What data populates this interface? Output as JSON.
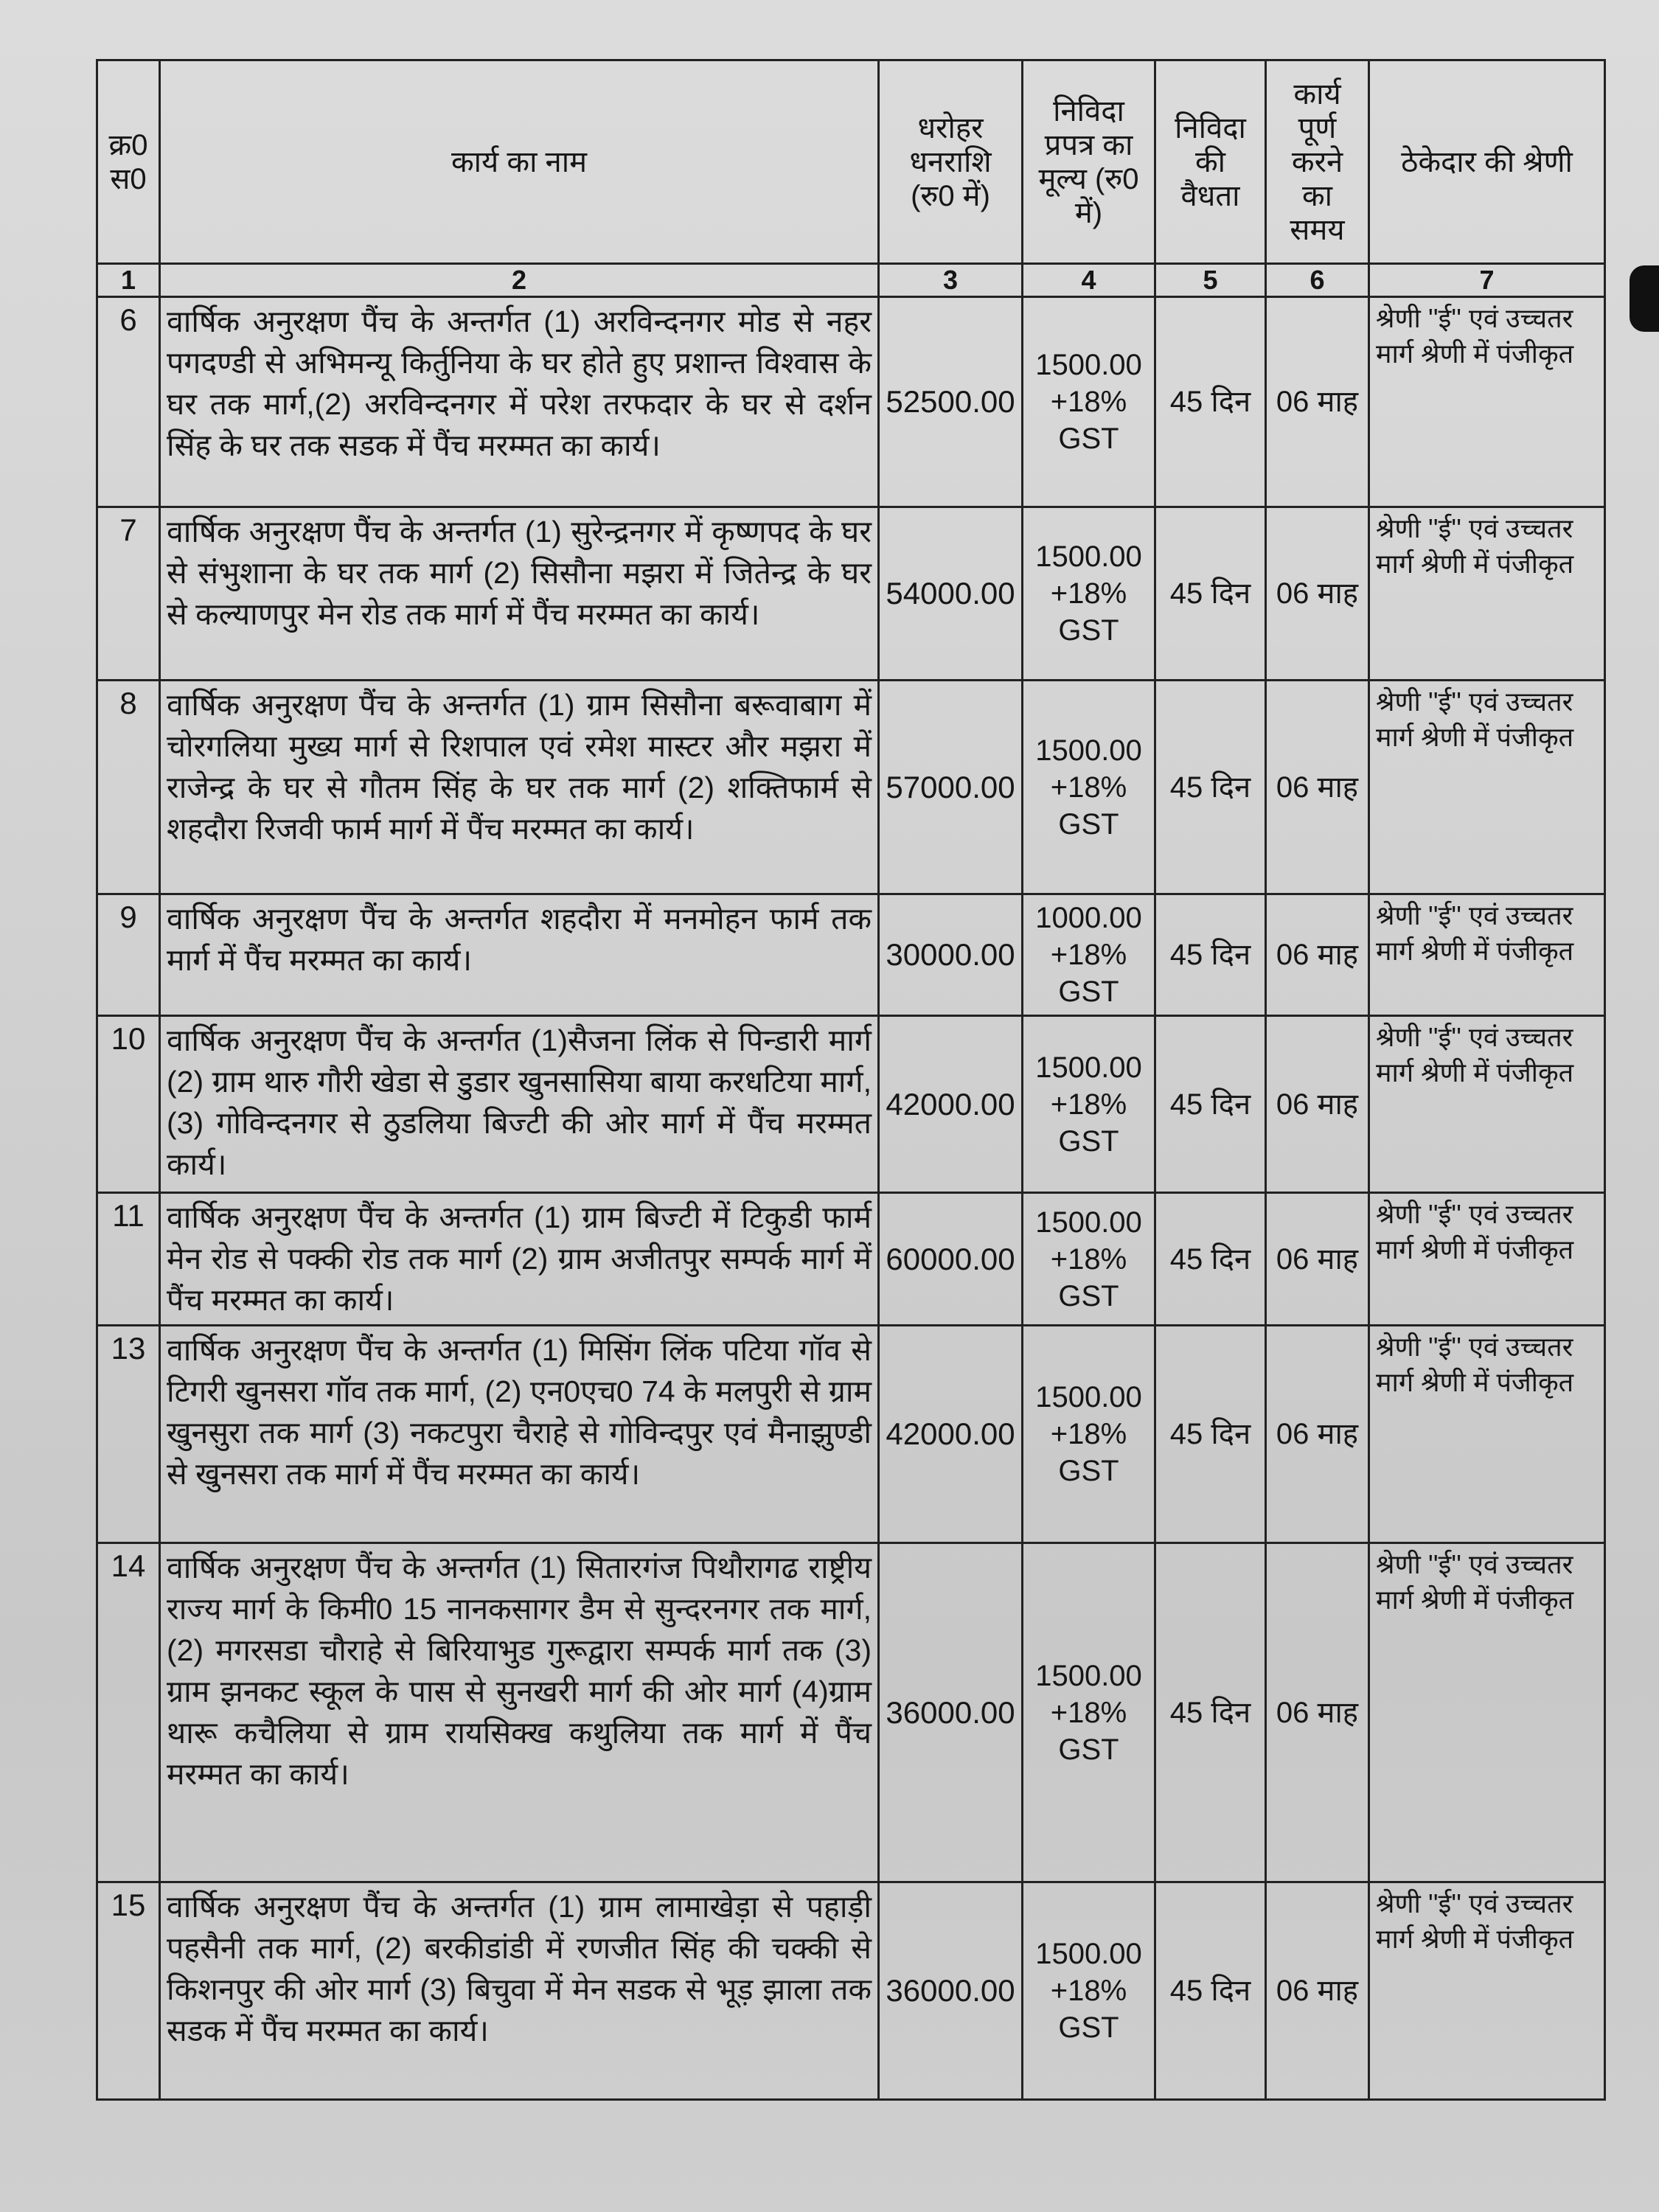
{
  "table": {
    "headers": [
      "क्र0 स0",
      "कार्य का नाम",
      "धरोहर धनराशि (रु0 में)",
      "निविदा प्रपत्र का मूल्य (रु0 में)",
      "निविदा की वैधता",
      "कार्य पूर्ण करने का समय",
      "ठेकेदार की श्रेणी"
    ],
    "column_numbers": [
      "1",
      "2",
      "3",
      "4",
      "5",
      "6",
      "7"
    ],
    "rows": [
      {
        "sn": "6",
        "name": "वार्षिक अनुरक्षण पैंच के अन्तर्गत (1) अरविन्दनगर मोड से नहर पगदण्डी से अभिमन्यू किर्तुनिया के घर होते हुए प्रशान्त विश्वास के घर तक मार्ग,(2) अरविन्दनगर में परेश तरफदार के घर से दर्शन सिंह के घर तक सडक में पैंच मरम्मत का कार्य।",
        "amount": "52500.00",
        "fee": "1500.00 +18% GST",
        "validity": "45 दिन",
        "time": "06 माह",
        "category": "श्रेणी ''ई'' एवं उच्चतर मार्ग श्रेणी में पंजीकृत"
      },
      {
        "sn": "7",
        "name": "वार्षिक अनुरक्षण पैंच के अन्तर्गत (1) सुरेन्द्रनगर में कृष्णपद के घर से संभुशाना के घर तक मार्ग (2) सिसौना मझरा में जितेन्द्र के घर से कल्याणपुर मेन रोड तक मार्ग में पैंच मरम्मत का कार्य।",
        "amount": "54000.00",
        "fee": "1500.00 +18% GST",
        "validity": "45 दिन",
        "time": "06 माह",
        "category": "श्रेणी ''ई'' एवं उच्चतर मार्ग श्रेणी में पंजीकृत"
      },
      {
        "sn": "8",
        "name": "वार्षिक अनुरक्षण पैंच के अन्तर्गत (1) ग्राम सिसौना बरूवाबाग में चोरगलिया मुख्य मार्ग से रिशपाल एवं रमेश मास्टर और मझरा में राजेन्द्र के घर से गौतम सिंह के घर तक मार्ग (2) शक्तिफार्म से शहदौरा रिजवी फार्म मार्ग में पैंच मरम्मत का कार्य।",
        "amount": "57000.00",
        "fee": "1500.00 +18% GST",
        "validity": "45 दिन",
        "time": "06 माह",
        "category": "श्रेणी ''ई'' एवं उच्चतर मार्ग श्रेणी में पंजीकृत"
      },
      {
        "sn": "9",
        "name": "वार्षिक अनुरक्षण पैंच के अन्तर्गत शहदौरा में मनमोहन फार्म तक मार्ग में पैंच मरम्मत का कार्य।",
        "amount": "30000.00",
        "fee": "1000.00 +18% GST",
        "validity": "45 दिन",
        "time": "06 माह",
        "category": "श्रेणी ''ई'' एवं उच्चतर मार्ग श्रेणी में पंजीकृत"
      },
      {
        "sn": "10",
        "name": "वार्षिक अनुरक्षण पैंच के अन्तर्गत (1)सैजना लिंक से पिन्डारी मार्ग (2) ग्राम थारु गौरी खेडा से डुडार खुनसासिया बाया करधटिया मार्ग, (3) गोविन्दनगर से ठुडलिया बिज्टी की ओर मार्ग में पैंच मरम्मत कार्य।",
        "amount": "42000.00",
        "fee": "1500.00 +18% GST",
        "validity": "45 दिन",
        "time": "06 माह",
        "category": "श्रेणी ''ई'' एवं उच्चतर मार्ग श्रेणी में पंजीकृत"
      },
      {
        "sn": "11",
        "name": "वार्षिक अनुरक्षण पैंच के अन्तर्गत (1) ग्राम बिज्टी में टिकुडी फार्म मेन रोड से पक्की रोड तक मार्ग (2) ग्राम अजीतपुर सम्पर्क मार्ग में पैंच मरम्मत का कार्य।",
        "amount": "60000.00",
        "fee": "1500.00 +18% GST",
        "validity": "45 दिन",
        "time": "06 माह",
        "category": "श्रेणी ''ई'' एवं उच्चतर मार्ग श्रेणी में पंजीकृत"
      },
      {
        "sn": "13",
        "name": "वार्षिक अनुरक्षण पैंच के अन्तर्गत (1) मिसिंग लिंक पटिया गॉव से टिगरी खुनसरा गॉव तक मार्ग, (2) एन0एच0 74 के मलपुरी से ग्राम खुनसुरा तक मार्ग (3) नकटपुरा चैराहे से गोविन्दपुर एवं मैनाझुण्डी से खुनसरा तक मार्ग में पैंच मरम्मत का कार्य।",
        "amount": "42000.00",
        "fee": "1500.00 +18% GST",
        "validity": "45 दिन",
        "time": "06 माह",
        "category": "श्रेणी ''ई'' एवं उच्चतर मार्ग श्रेणी में पंजीकृत"
      },
      {
        "sn": "14",
        "name": "वार्षिक अनुरक्षण पैंच के अन्तर्गत (1) सितारगंज पिथौरागढ राष्ट्रीय राज्य मार्ग के किमी0 15 नानकसागर डैम से सुन्दरनगर तक मार्ग, (2) मगरसडा चौराहे से बिरियाभुड गुरूद्वारा सम्पर्क मार्ग तक (3) ग्राम झनकट स्कूल के पास से सुनखरी मार्ग की ओर मार्ग (4)ग्राम थारू कचैलिया से ग्राम रायसिक्ख कथुलिया तक मार्ग में पैंच मरम्मत का कार्य।",
        "amount": "36000.00",
        "fee": "1500.00 +18% GST",
        "validity": "45 दिन",
        "time": "06 माह",
        "category": "श्रेणी ''ई'' एवं उच्चतर मार्ग श्रेणी में पंजीकृत"
      },
      {
        "sn": "15",
        "name": "वार्षिक अनुरक्षण पैंच के अन्तर्गत (1) ग्राम लामाखेड़ा से पहाड़ी पहसैनी तक मार्ग, (2) बरकीडांडी में रणजीत सिंह की चक्की से किशनपुर की ओर मार्ग (3) बिचुवा में मेन सडक से भूड़ झाला तक सडक में पैंच मरम्मत का कार्य।",
        "amount": "36000.00",
        "fee": "1500.00 +18% GST",
        "validity": "45 दिन",
        "time": "06 माह",
        "category": "श्रेणी ''ई'' एवं उच्चतर मार्ग श्रेणी में पंजीकृत"
      }
    ]
  }
}
